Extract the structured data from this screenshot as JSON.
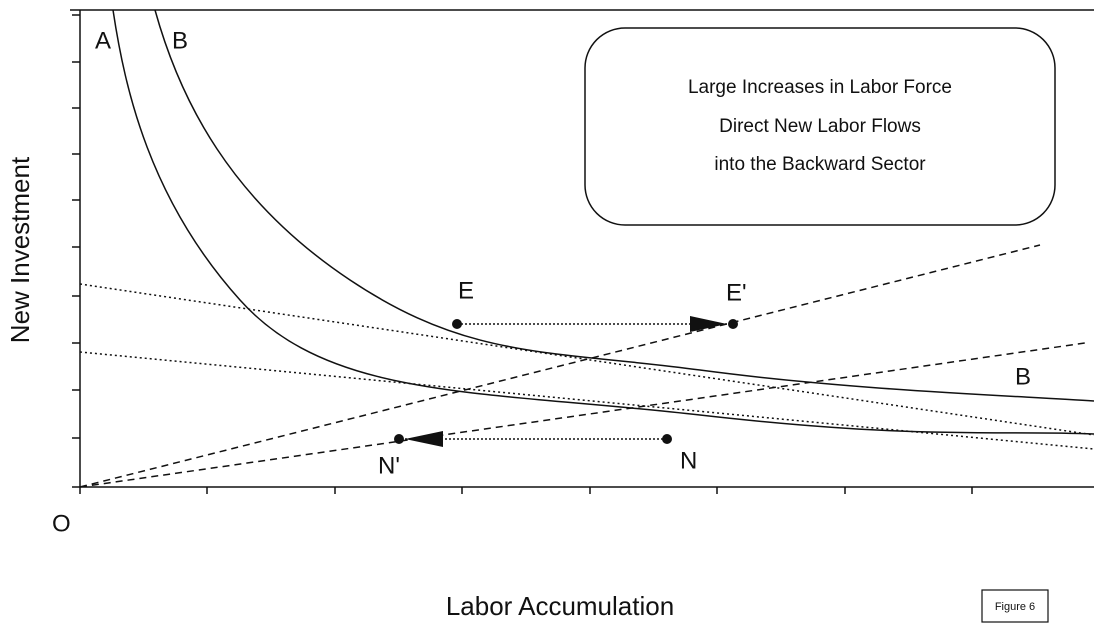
{
  "axes": {
    "y_label": "New Investment",
    "x_label": "Labor Accumulation",
    "origin": "O"
  },
  "curves": {
    "a": "A",
    "b_top": "B",
    "b_right": "B"
  },
  "points": {
    "e": "E",
    "e_prime": "E'",
    "n": "N",
    "n_prime": "N'"
  },
  "note": {
    "lines": [
      "Large Increases in Labor Force",
      "Direct New Labor Flows",
      "into the Backward Sector"
    ]
  },
  "figure": "Figure 6"
}
